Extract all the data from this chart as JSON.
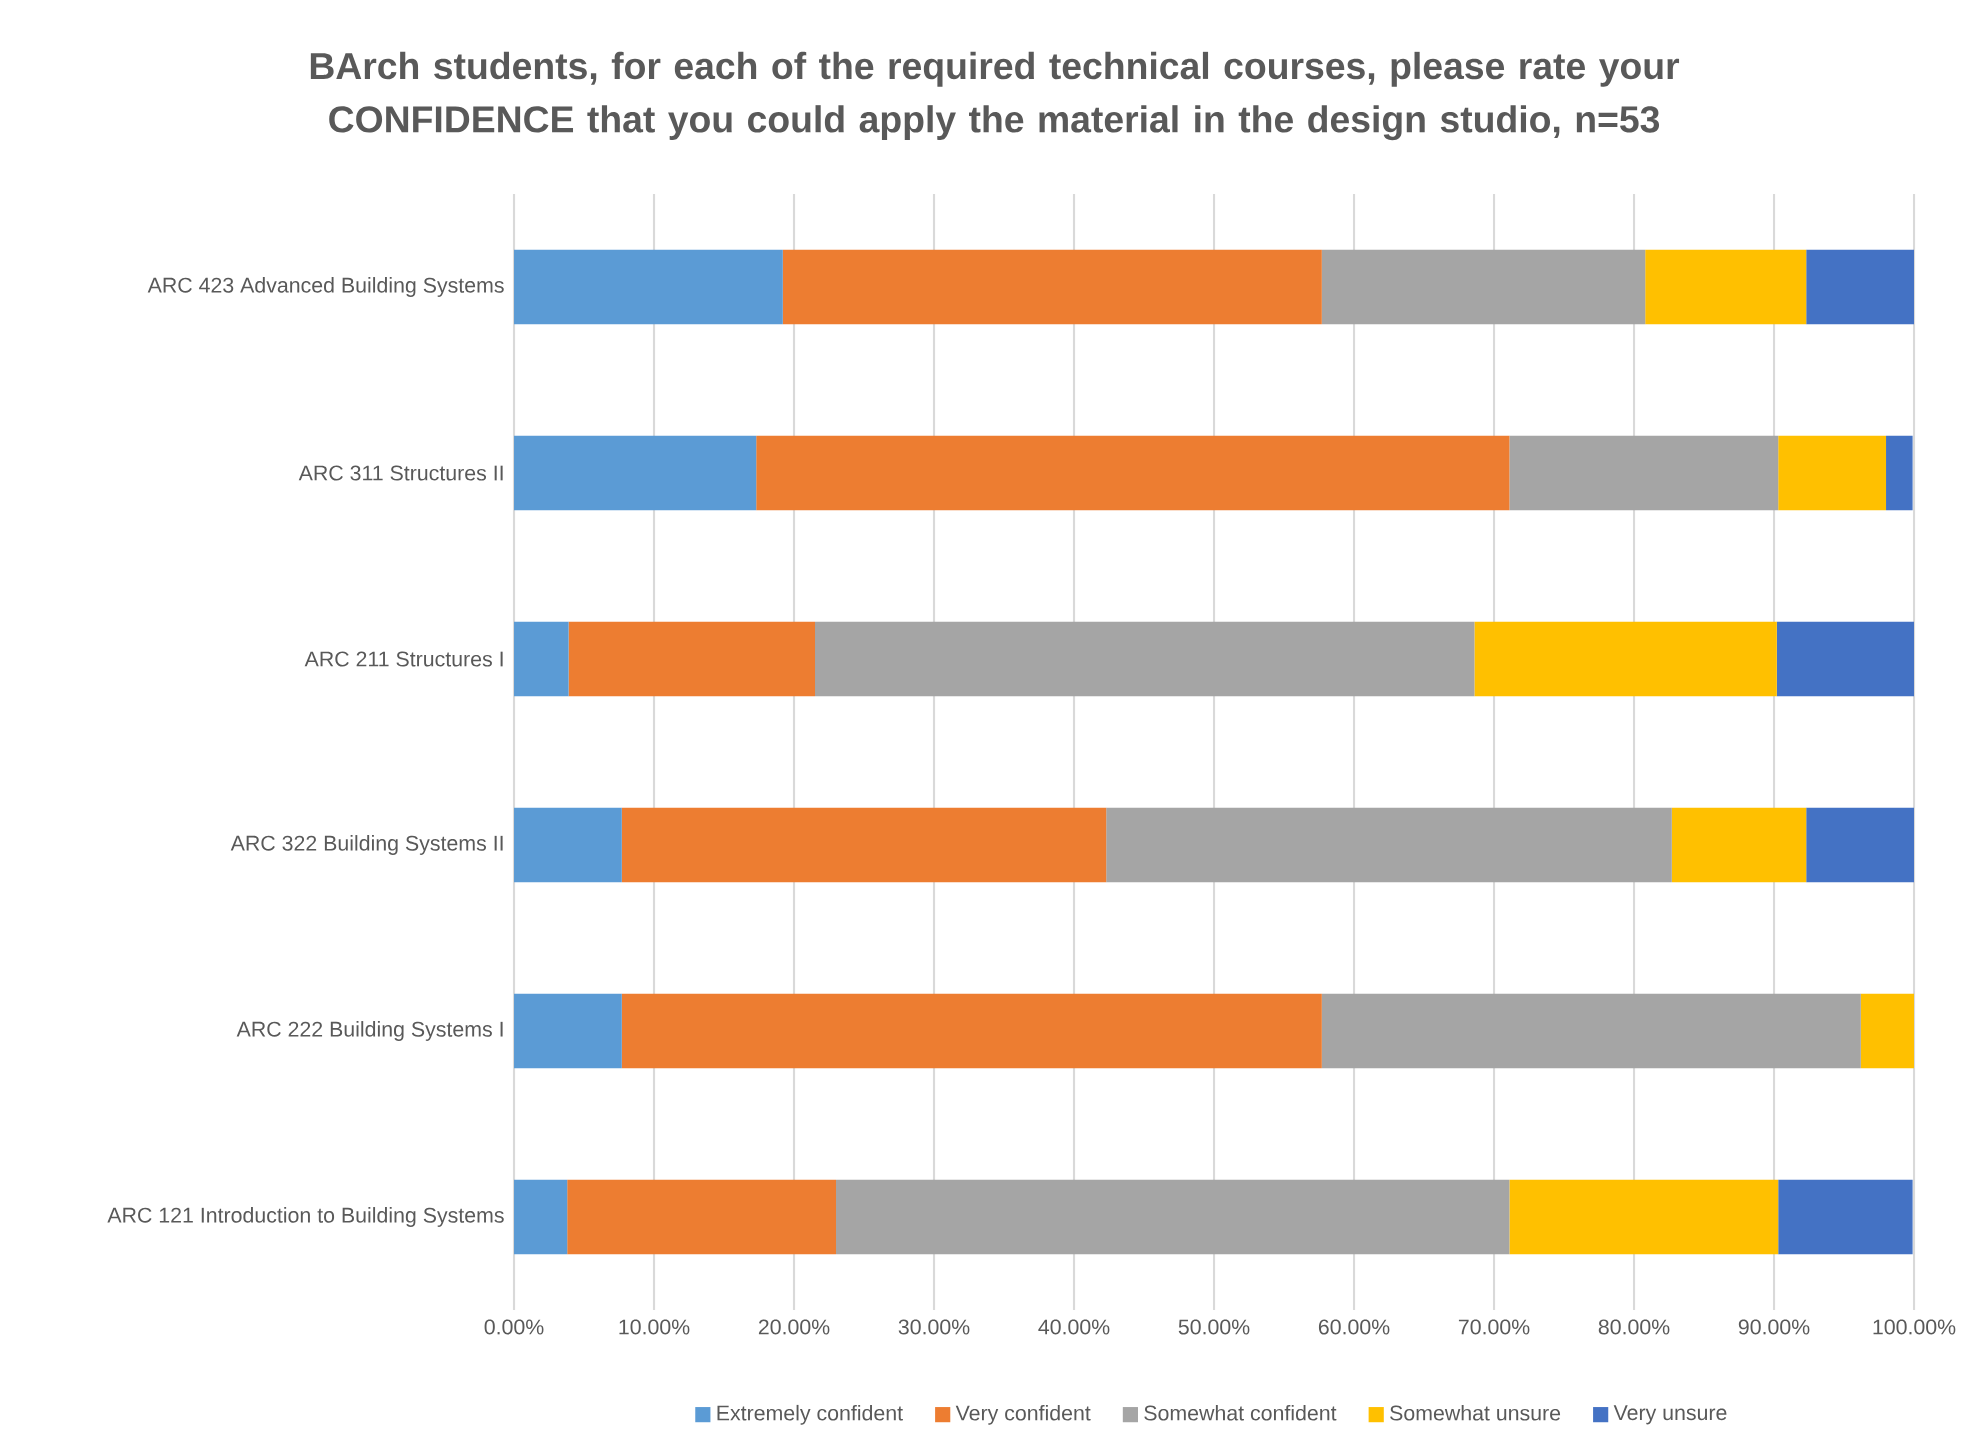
{
  "chart_data": {
    "type": "bar",
    "orientation": "horizontal",
    "stacked": true,
    "title": "BArch students, for each of the required technical courses, please rate your CONFIDENCE that you could apply the material in the design studio, n=53",
    "categories": [
      "ARC 423 Advanced Building Systems",
      "ARC 311 Structures II",
      "ARC 211 Structures I",
      "ARC 322 Building Systems II",
      "ARC 222 Building Systems I",
      "ARC 121  Introduction to Building Systems"
    ],
    "series": [
      {
        "name": "Extremely confident",
        "color": "#5b9bd5",
        "values": [
          19.2,
          17.3,
          3.9,
          7.7,
          7.7,
          3.8
        ]
      },
      {
        "name": "Very confident",
        "color": "#ed7d31",
        "values": [
          38.5,
          53.8,
          17.6,
          34.6,
          50.0,
          19.2
        ]
      },
      {
        "name": "Somewhat confident",
        "color": "#a5a5a5",
        "values": [
          23.1,
          19.2,
          47.1,
          40.4,
          38.5,
          48.1
        ]
      },
      {
        "name": "Somewhat unsure",
        "color": "#ffc000",
        "values": [
          11.5,
          7.7,
          21.6,
          9.6,
          3.8,
          19.2
        ]
      },
      {
        "name": "Very unsure",
        "color": "#4472c4",
        "values": [
          7.7,
          1.9,
          9.8,
          7.7,
          null,
          9.6
        ]
      }
    ],
    "xlim": [
      0,
      100
    ],
    "xticks": [
      {
        "value": 0,
        "label": "0.00%"
      },
      {
        "value": 10,
        "label": "10.00%"
      },
      {
        "value": 20,
        "label": "20.00%"
      },
      {
        "value": 30,
        "label": "30.00%"
      },
      {
        "value": 40,
        "label": "40.00%"
      },
      {
        "value": 50,
        "label": "50.00%"
      },
      {
        "value": 60,
        "label": "60.00%"
      },
      {
        "value": 70,
        "label": "70.00%"
      },
      {
        "value": 80,
        "label": "80.00%"
      },
      {
        "value": 90,
        "label": "90.00%"
      },
      {
        "value": 100,
        "label": "100.00%"
      }
    ],
    "grid": "x",
    "legend": "bottom"
  }
}
